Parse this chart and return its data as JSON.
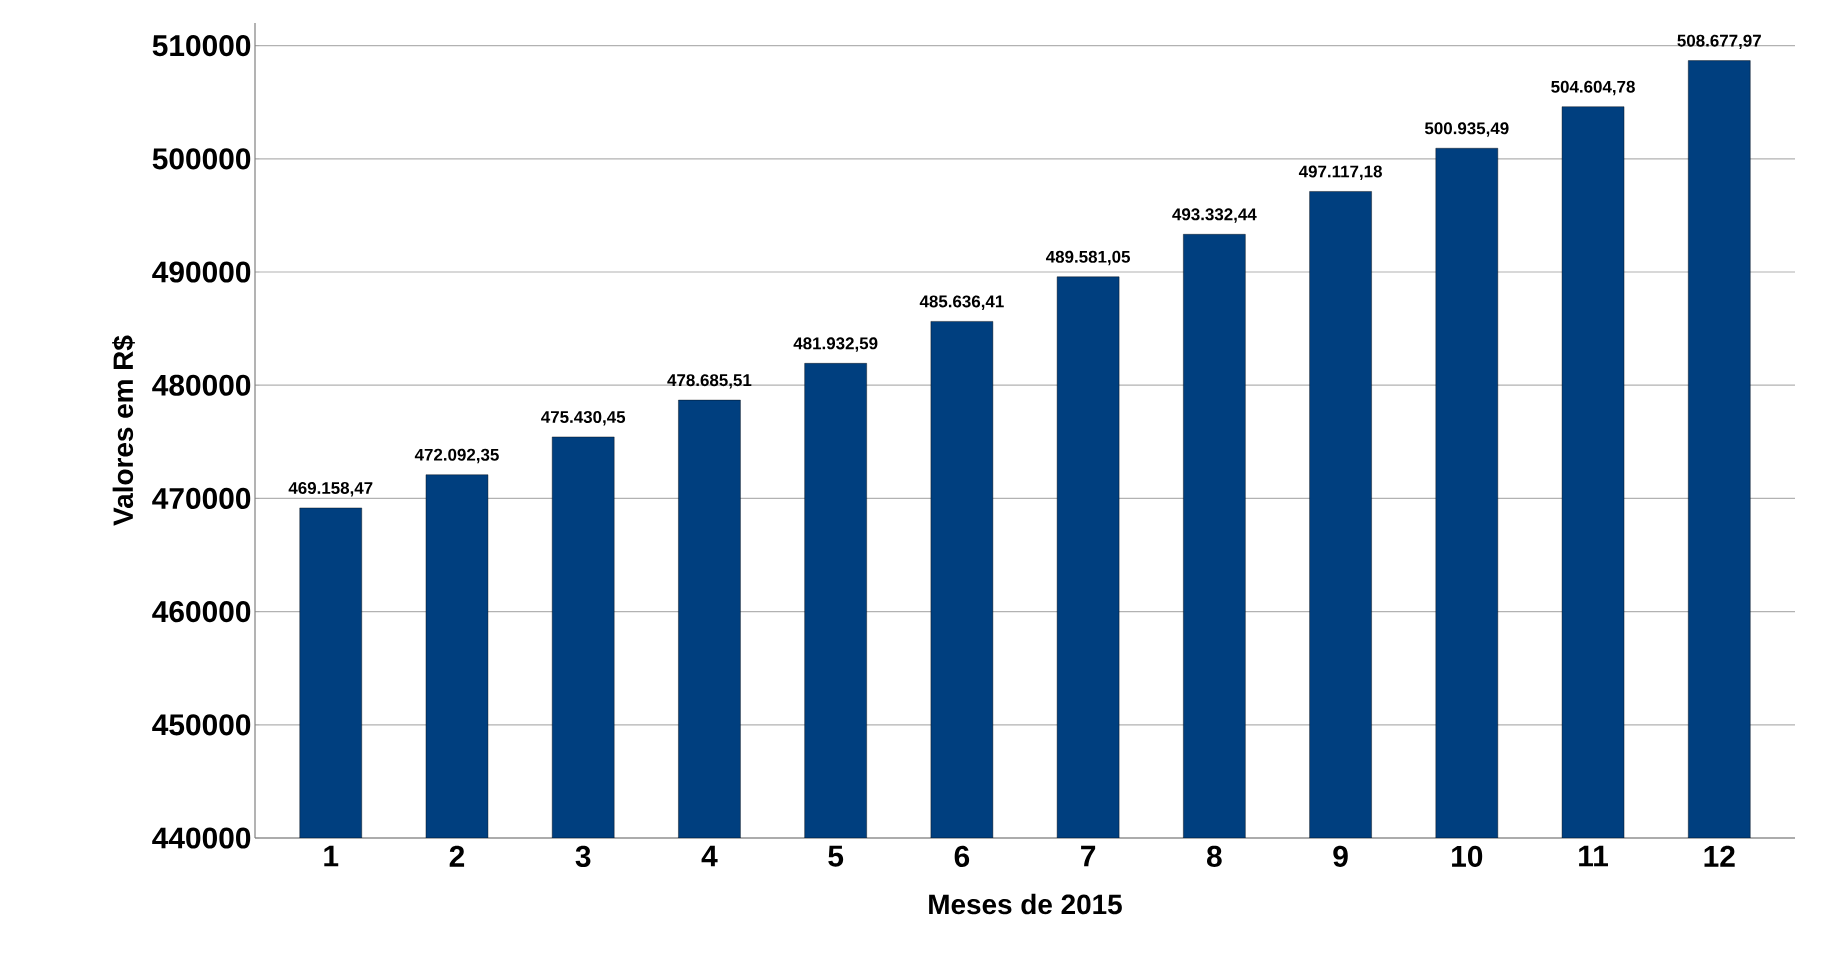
{
  "chart_data": {
    "type": "bar",
    "xlabel": "Meses de 2015",
    "ylabel": "Valores em R$",
    "categories": [
      "1",
      "2",
      "3",
      "4",
      "5",
      "6",
      "7",
      "8",
      "9",
      "10",
      "11",
      "12"
    ],
    "values": [
      469158.47,
      472092.35,
      475430.45,
      478685.51,
      481932.59,
      485636.41,
      489581.05,
      493332.44,
      497117.18,
      500935.49,
      504604.78,
      508677.97
    ],
    "value_labels": [
      "469.158,47",
      "472.092,35",
      "475.430,45",
      "478.685,51",
      "481.932,59",
      "485.636,41",
      "489.581,05",
      "493.332,44",
      "497.117,18",
      "500.935,49",
      "504.604,78",
      "508.677,97"
    ],
    "color": "#003f7f",
    "ylim": [
      440000,
      512000
    ],
    "yticks": [
      440000,
      450000,
      460000,
      470000,
      480000,
      490000,
      500000,
      510000
    ],
    "grid": "y"
  }
}
